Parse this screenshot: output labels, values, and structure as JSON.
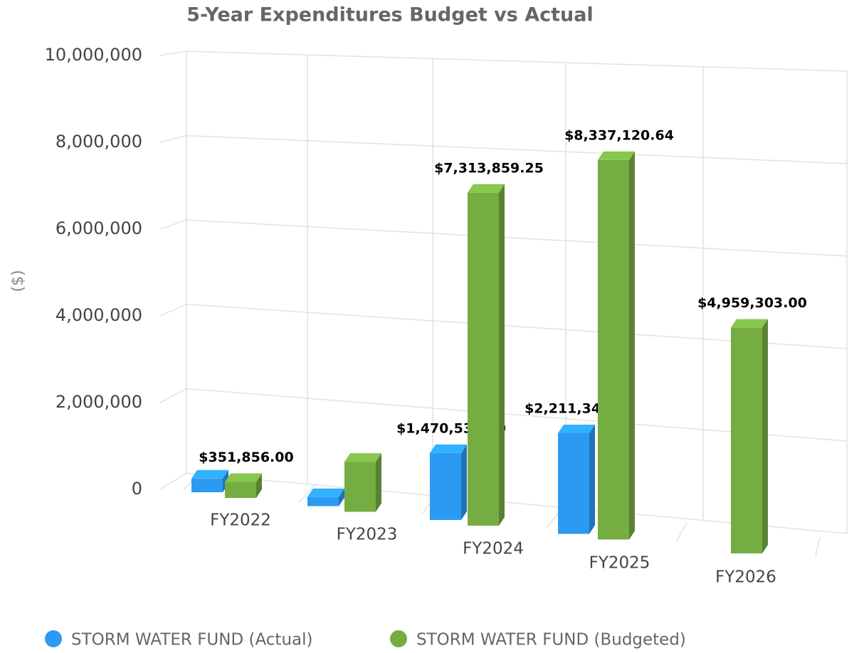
{
  "chart_data": {
    "type": "bar3d",
    "title": "5-Year Expenditures Budget vs Actual",
    "y_label": "($)",
    "categories": [
      "FY2022",
      "FY2023",
      "FY2024",
      "FY2025",
      "FY2026"
    ],
    "series": [
      {
        "name": "STORM WATER FUND (Actual)",
        "color": "#2b9af3",
        "values": [
          300000,
          200000,
          1470535.3,
          2211342.39,
          null
        ],
        "value_labels": [
          null,
          null,
          "$1,470,535.30",
          "$2,211,342.39",
          null
        ]
      },
      {
        "name": "STORM WATER FUND (Budgeted)",
        "color": "#76ad43",
        "values": [
          351856.0,
          1100000,
          7313859.25,
          8337120.64,
          4959303.0
        ],
        "value_labels": [
          "$351,856.00",
          null,
          "$7,313,859.25",
          "$8,337,120.64",
          "$4,959,303.00"
        ]
      }
    ],
    "ylim": [
      0,
      10000000
    ],
    "yticks": [
      {
        "value": 0,
        "label": "0"
      },
      {
        "value": 2000000,
        "label": "2,000,000"
      },
      {
        "value": 4000000,
        "label": "4,000,000"
      },
      {
        "value": 6000000,
        "label": "6,000,000"
      },
      {
        "value": 8000000,
        "label": "8,000,000"
      },
      {
        "value": 10000000,
        "label": "10,000,000"
      }
    ],
    "grid": true,
    "legend": "bottom"
  }
}
